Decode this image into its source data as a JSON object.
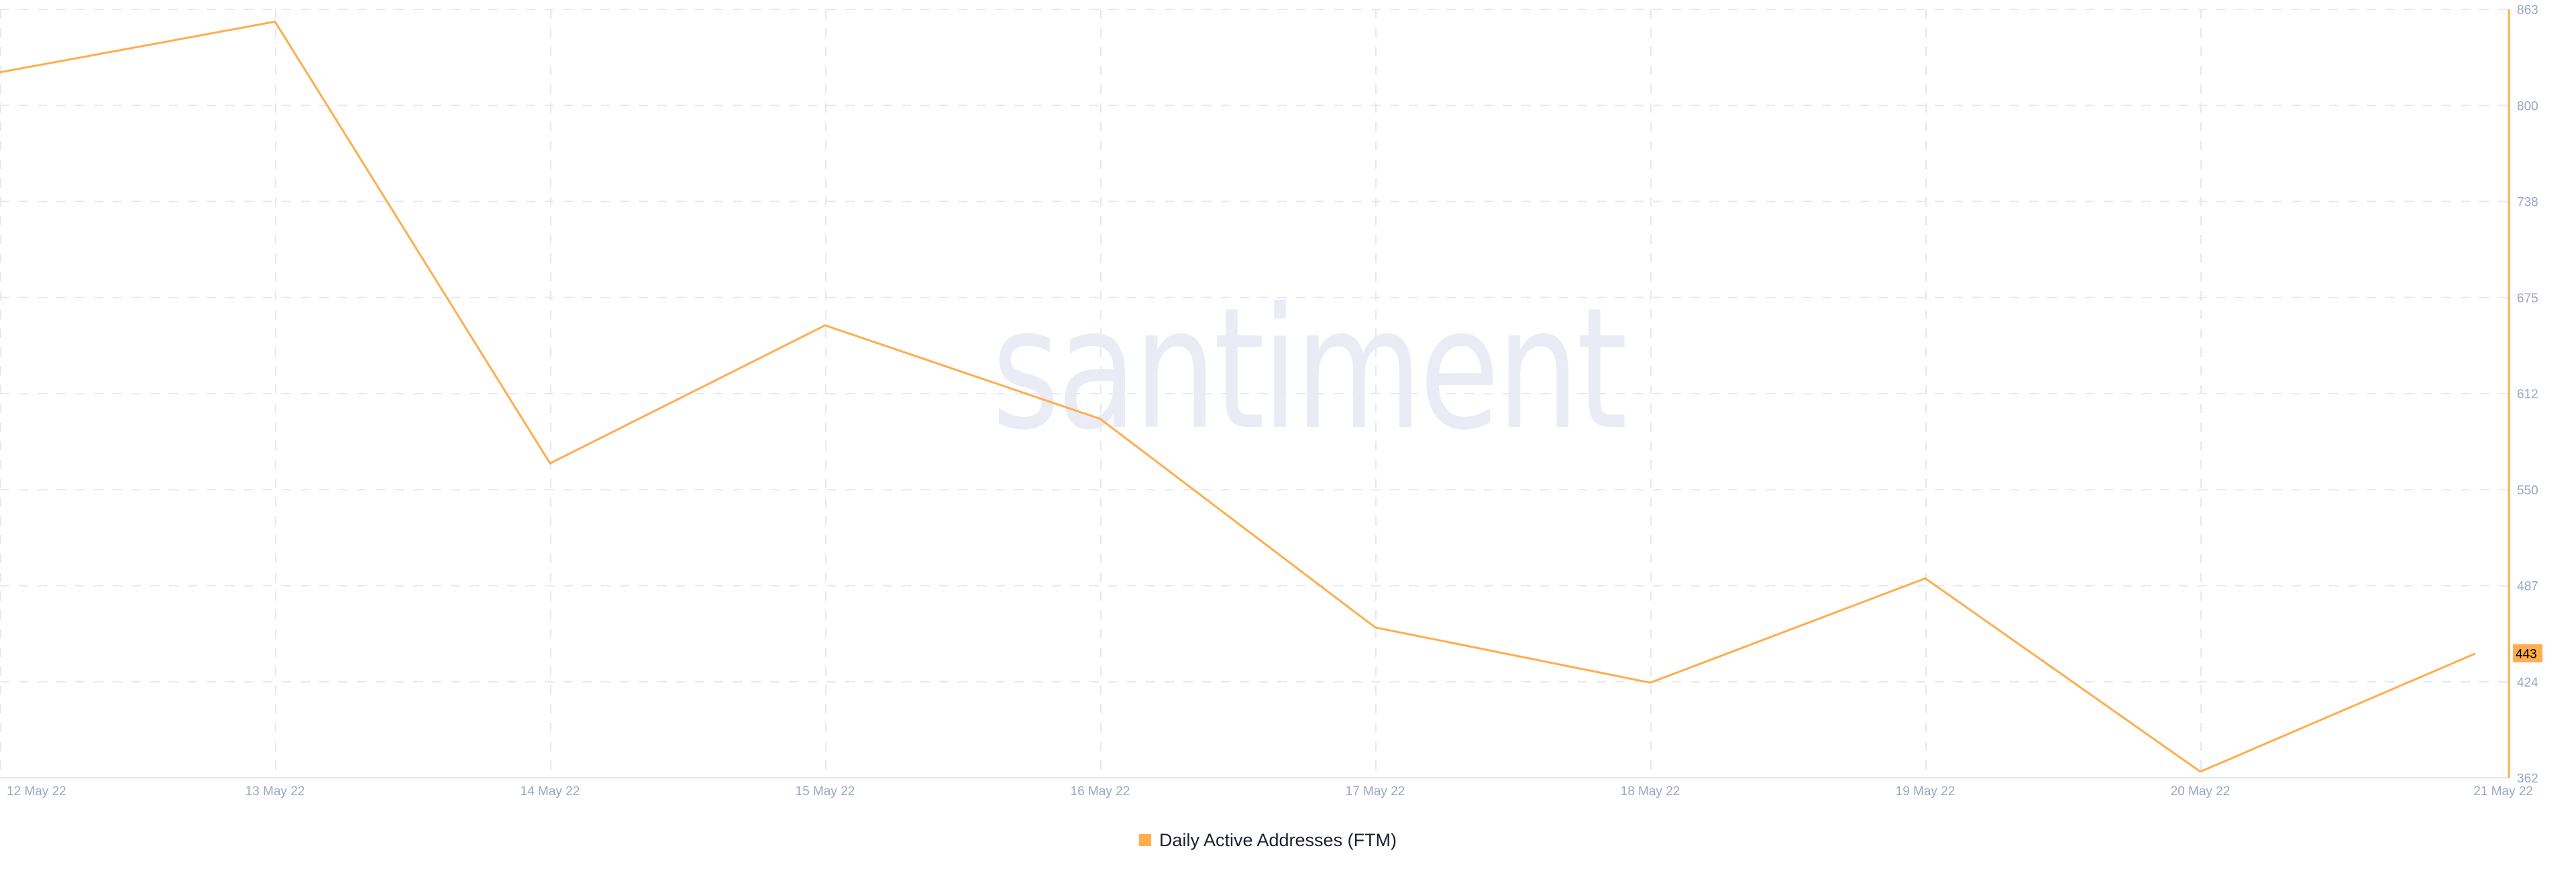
{
  "watermark": {
    "text": "santiment"
  },
  "legend": {
    "label": "Daily Active Addresses (FTM)",
    "color": "#ffad4d"
  },
  "last_value_badge": {
    "value": "443",
    "color": "#ffad4d"
  },
  "colors": {
    "line": "#ffad4d",
    "grid": "#e5e8f2",
    "axis_text": "#9ba6c2",
    "axis_line": "#e5e8f2"
  },
  "chart_data": {
    "type": "line",
    "title": "",
    "xlabel": "",
    "ylabel": "",
    "categories": [
      "12 May 22",
      "13 May 22",
      "14 May 22",
      "15 May 22",
      "16 May 22",
      "17 May 22",
      "18 May 22",
      "19 May 22",
      "20 May 22",
      "21 May 22"
    ],
    "series": [
      {
        "name": "Daily Active Addresses (FTM)",
        "color": "#ffad4d",
        "values": [
          822,
          855,
          567,
          657,
          596,
          460,
          424,
          492,
          366,
          443
        ]
      }
    ],
    "y_ticks": [
      "863",
      "800",
      "738",
      "675",
      "612",
      "550",
      "487",
      "424",
      "362"
    ],
    "ylim": [
      362,
      863
    ],
    "y_axis_position": "right",
    "grid": true,
    "legend_position": "bottom",
    "last_value_label": 443
  }
}
